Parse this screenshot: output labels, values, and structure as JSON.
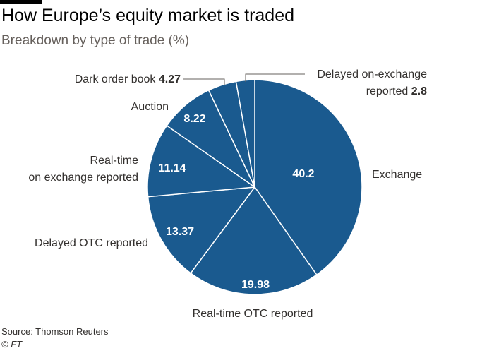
{
  "header": {
    "title": "How Europe’s equity market is traded",
    "subtitle": "Breakdown by type of trade (%)"
  },
  "footer": {
    "source": "Source: Thomson Reuters",
    "credit": "© FT"
  },
  "colors": {
    "slice_fill": "#1a5a8f",
    "slice_edge": "#ffffff",
    "leader_line": "#66605c",
    "rule": "#000000"
  },
  "chart_data": {
    "type": "pie",
    "title": "How Europe’s equity market is traded",
    "subtitle": "Breakdown by type of trade (%)",
    "slices": [
      {
        "label": "Exchange",
        "value": 40.2,
        "value_text": "40.2"
      },
      {
        "label": "Real-time OTC reported",
        "value": 19.98,
        "value_text": "19.98"
      },
      {
        "label": "Delayed OTC reported",
        "value": 13.37,
        "value_text": "13.37"
      },
      {
        "label": "Real-time on exchange reported",
        "label_lines": [
          "Real-time",
          "on exchange reported"
        ],
        "value": 11.14,
        "value_text": "11.14"
      },
      {
        "label": "Auction",
        "value": 8.22,
        "value_text": "8.22"
      },
      {
        "label": "Dark order book",
        "value": 4.27,
        "value_text": "4.27"
      },
      {
        "label": "Delayed on-exchange reported",
        "label_lines": [
          "Delayed on-exchange",
          "reported"
        ],
        "value": 2.8,
        "value_text": "2.8"
      }
    ]
  }
}
